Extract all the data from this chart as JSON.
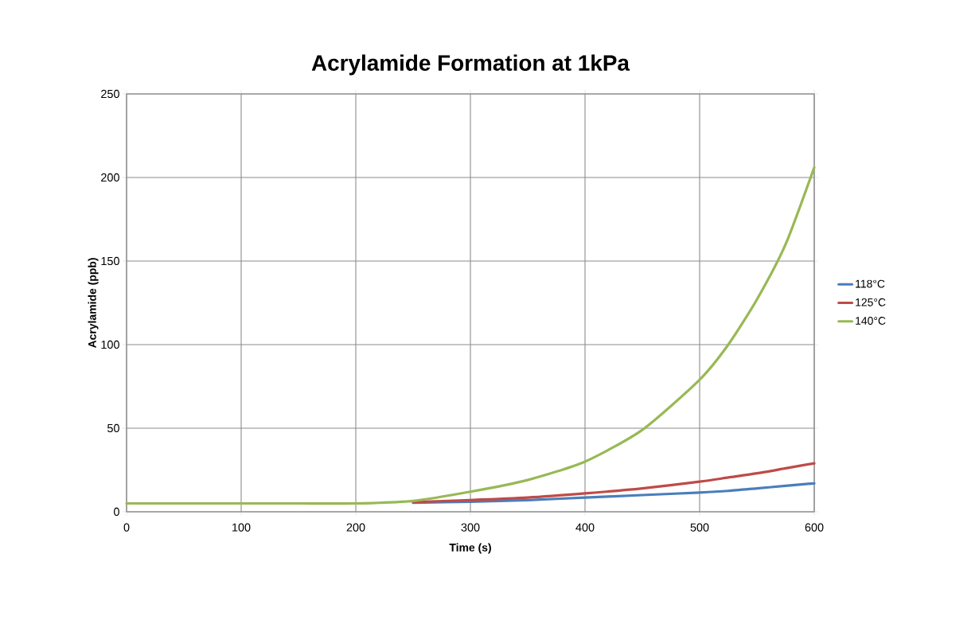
{
  "chart_data": {
    "type": "line",
    "title": "Acrylamide Formation at 1kPa",
    "xlabel": "Time (s)",
    "ylabel": "Acrylamide (ppb)",
    "x": [
      0,
      50,
      100,
      150,
      200,
      250,
      300,
      350,
      400,
      450,
      500,
      525,
      550,
      575,
      600
    ],
    "series": [
      {
        "name": "118°C",
        "color": "#4a7ebb",
        "values": [
          null,
          null,
          null,
          null,
          null,
          5.4,
          6,
          7,
          8.5,
          10,
          11.5,
          12.5,
          14,
          15.5,
          17
        ]
      },
      {
        "name": "125°C",
        "color": "#be4b48",
        "values": [
          null,
          null,
          null,
          null,
          null,
          5.8,
          7,
          8.5,
          11,
          14,
          18,
          20.5,
          23,
          26,
          29
        ]
      },
      {
        "name": "140°C",
        "color": "#98b954",
        "values": [
          5,
          5,
          5,
          5,
          5,
          6.5,
          12,
          19,
          30,
          49,
          79,
          100,
          127,
          160,
          206
        ]
      }
    ],
    "xlim": [
      0,
      600
    ],
    "xticks": [
      0,
      100,
      200,
      300,
      400,
      500,
      600
    ],
    "ylim": [
      0,
      250
    ],
    "yticks": [
      0,
      50,
      100,
      150,
      200,
      250
    ],
    "grid": true,
    "legend": "right",
    "marker": "none",
    "line_style": "solid"
  }
}
